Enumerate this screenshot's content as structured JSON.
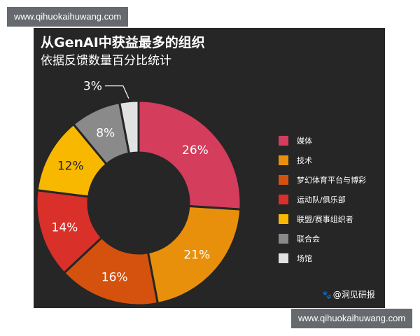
{
  "watermark_top": "www.qihuokaihuwang.com",
  "watermark_bottom": "www.qihuokaihuwang.com",
  "credit": {
    "icon": "paw-icon",
    "text": "@洞见研报"
  },
  "chart_data": {
    "type": "pie",
    "variant": "donut",
    "title": "从GenAI中获益最多的组织",
    "subtitle": "依据反馈数量百分比统计",
    "legend_position": "right",
    "series": [
      {
        "name": "媒体",
        "value": 26,
        "label": "26%",
        "color": "#d43d5c"
      },
      {
        "name": "技术",
        "value": 21,
        "label": "21%",
        "color": "#e8900c"
      },
      {
        "name": "梦幻体育平台与博彩",
        "value": 16,
        "label": "16%",
        "color": "#d4520e"
      },
      {
        "name": "运动队/俱乐部",
        "value": 14,
        "label": "14%",
        "color": "#d9302a"
      },
      {
        "name": "联盟/赛事组织者",
        "value": 12,
        "label": "12%",
        "color": "#f8b800"
      },
      {
        "name": "联合会",
        "value": 8,
        "label": "8%",
        "color": "#8a8a8a"
      },
      {
        "name": "场馆",
        "value": 3,
        "label": "3%",
        "color": "#e2e2e2"
      }
    ]
  }
}
